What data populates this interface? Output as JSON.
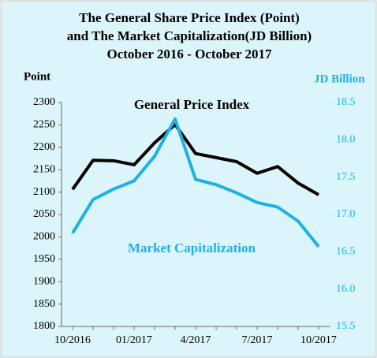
{
  "chart_data": {
    "type": "line",
    "title": [
      "The General Share Price Index (Point)",
      "and  The Market Capitalization(JD Billion)",
      "October 2016 -  October 2017"
    ],
    "ylabel": "Point",
    "y2label": "JD Billion",
    "categories": [
      "10/2016",
      null,
      null,
      "01/2017",
      null,
      null,
      "4/2017",
      null,
      null,
      "7/2017",
      null,
      null,
      "10/2017"
    ],
    "series": [
      {
        "name": "General  Price Index",
        "color": "#000000",
        "axis": "y",
        "values": [
          2106,
          2171,
          2170,
          2161,
          2210,
          2251,
          2186,
          2177,
          2168,
          2142,
          2157,
          2120,
          2094
        ]
      },
      {
        "name": "Market Capitalization",
        "color": "#1fb0e6",
        "axis": "y2",
        "values": [
          16.75,
          17.2,
          17.34,
          17.45,
          17.78,
          18.28,
          17.47,
          17.4,
          17.29,
          17.16,
          17.1,
          16.91,
          16.57
        ]
      }
    ],
    "ylim": [
      1800,
      2300
    ],
    "yticks": [
      1800,
      1850,
      1900,
      1950,
      2000,
      2050,
      2100,
      2150,
      2200,
      2250,
      2300
    ],
    "y2lim": [
      15.5,
      18.5
    ],
    "y2ticks": [
      15.5,
      {
        "value": 16,
        "label": "16.0"
      },
      16.5,
      {
        "value": 17,
        "label": "17.0"
      },
      17.5,
      {
        "value": 18,
        "label": "18.0"
      },
      18.5
    ]
  }
}
